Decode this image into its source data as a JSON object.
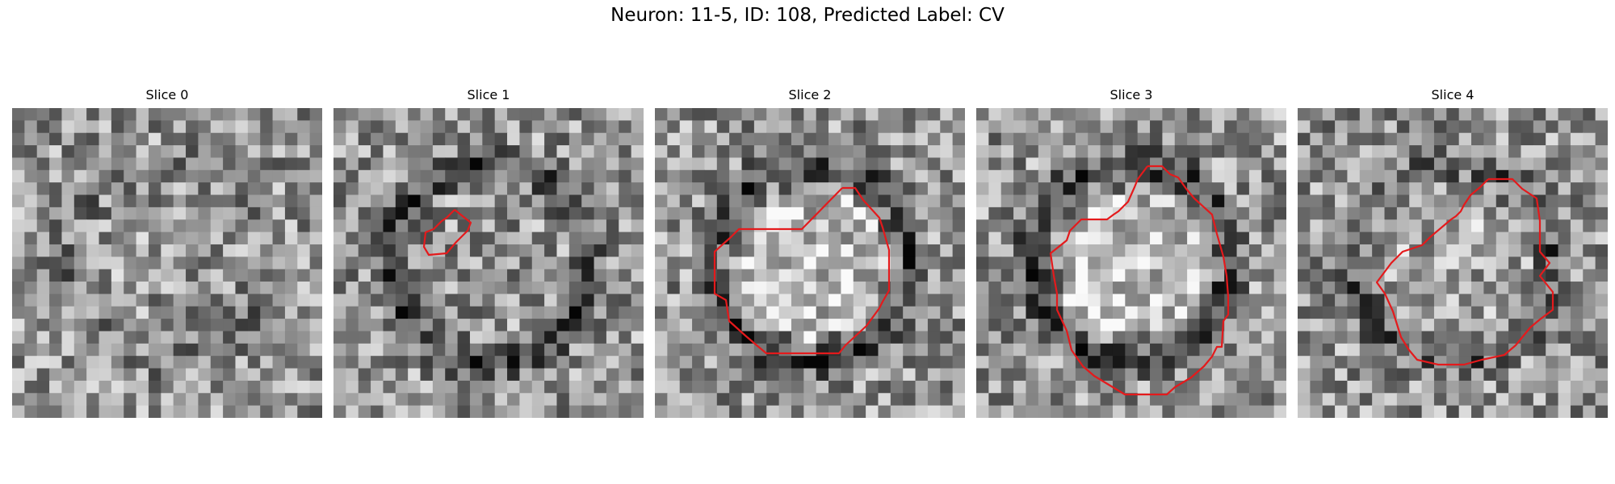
{
  "figure": {
    "title": "Neuron: 11-5, ID: 108, Predicted Label: CV",
    "neuron": "11-5",
    "id": 108,
    "predicted_label": "CV"
  },
  "panels": [
    {
      "title": "Slice 0",
      "has_contour": false,
      "seed": 11,
      "dark_ring": 0.15,
      "bright_core": 0.05
    },
    {
      "title": "Slice 1",
      "has_contour": true,
      "seed": 23,
      "dark_ring": 0.55,
      "bright_core": 0.0
    },
    {
      "title": "Slice 2",
      "has_contour": true,
      "seed": 37,
      "dark_ring": 0.55,
      "bright_core": 0.45
    },
    {
      "title": "Slice 3",
      "has_contour": true,
      "seed": 51,
      "dark_ring": 0.6,
      "bright_core": 0.5
    },
    {
      "title": "Slice 4",
      "has_contour": true,
      "seed": 67,
      "dark_ring": 0.4,
      "bright_core": 0.2
    }
  ],
  "colors": {
    "contour": "#e41a1c",
    "background": "#ffffff"
  }
}
